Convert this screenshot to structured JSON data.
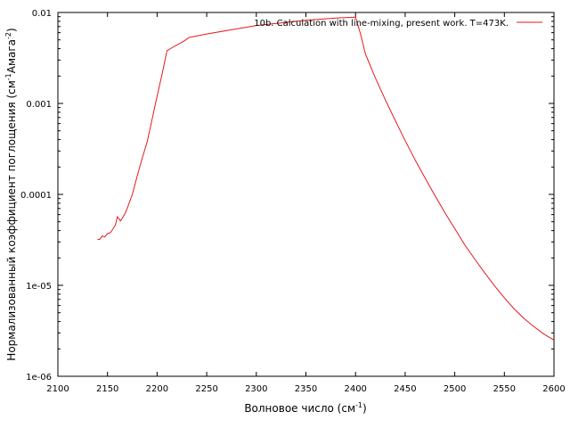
{
  "chart_data": {
    "type": "line",
    "title": "",
    "xlabel": "Волновое число (см",
    "xlabel_sup": "-1",
    "xlabel_end": ")",
    "ylabel_parts": {
      "a": "Нормализованный коэффициент поглощения (см",
      "b": "-1",
      "c": "Амага",
      "d": "-2",
      "e": ")"
    },
    "xlim": [
      2100,
      2600
    ],
    "ylim": [
      1e-06,
      0.01
    ],
    "yscale": "log",
    "grid": false,
    "legend_position": "top-right",
    "x_ticks": [
      2100,
      2150,
      2200,
      2250,
      2300,
      2350,
      2400,
      2450,
      2500,
      2550,
      2600
    ],
    "x_tick_labels": [
      "2100",
      "2150",
      "2200",
      "2250",
      "2300",
      "2350",
      "2400",
      "2450",
      "2500",
      "2550",
      "2600"
    ],
    "y_ticks": [
      1e-06,
      1e-05,
      0.0001,
      0.001,
      0.01
    ],
    "y_tick_labels": [
      "1e-06",
      "1e-05",
      "0.0001",
      "0.001",
      "0.01"
    ],
    "series": [
      {
        "name": "10b. Calculation with line-mixing, present work. T=473K.",
        "color": "#e41a1c",
        "x": [
          2140,
          2142,
          2145,
          2147,
          2150,
          2153,
          2155,
          2158,
          2160,
          2163,
          2165,
          2168,
          2170,
          2175,
          2180,
          2185,
          2190,
          2195,
          2200,
          2205,
          2210,
          2215,
          2220,
          2225,
          2230,
          2232,
          2250,
          2300,
          2350,
          2380,
          2400,
          2405,
          2410,
          2420,
          2430,
          2440,
          2450,
          2460,
          2470,
          2480,
          2490,
          2500,
          2510,
          2520,
          2530,
          2540,
          2550,
          2560,
          2570,
          2580,
          2590,
          2600
        ],
        "y": [
          3.2e-05,
          3.2e-05,
          3.5e-05,
          3.4e-05,
          3.7e-05,
          3.8e-05,
          4.1e-05,
          4.6e-05,
          5.7e-05,
          5.1e-05,
          5.5e-05,
          6.3e-05,
          7.1e-05,
          0.0001,
          0.00016,
          0.00025,
          0.00038,
          0.00067,
          0.0012,
          0.0021,
          0.0038,
          0.0041,
          0.0044,
          0.0047,
          0.0051,
          0.0053,
          0.0058,
          0.0072,
          0.0082,
          0.0087,
          0.0089,
          0.0058,
          0.0035,
          0.0019,
          0.0011,
          0.00065,
          0.00039,
          0.00024,
          0.000152,
          9.7e-05,
          6.3e-05,
          4.2e-05,
          2.8e-05,
          1.95e-05,
          1.38e-05,
          9.9e-06,
          7.3e-06,
          5.5e-06,
          4.3e-06,
          3.5e-06,
          2.9e-06,
          2.5e-06
        ]
      }
    ]
  }
}
